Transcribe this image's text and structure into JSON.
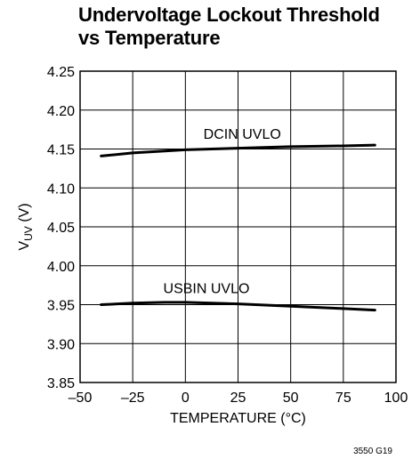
{
  "chart_data": {
    "type": "line",
    "title_lines": [
      "Undervoltage Lockout Threshold",
      "vs Temperature"
    ],
    "xlabel": "TEMPERATURE (°C)",
    "ylabel": {
      "main": "V",
      "sub": "UV",
      "unit": " (V)"
    },
    "xlim": [
      -50,
      100
    ],
    "ylim": [
      3.85,
      4.25
    ],
    "x_ticks": [
      -50,
      -25,
      0,
      25,
      50,
      75,
      100
    ],
    "x_tick_labels": [
      "–50",
      "–25",
      "0",
      "25",
      "50",
      "75",
      "100"
    ],
    "y_ticks": [
      3.85,
      3.9,
      3.95,
      4.0,
      4.05,
      4.1,
      4.15,
      4.2,
      4.25
    ],
    "y_tick_labels": [
      "3.85",
      "3.90",
      "3.95",
      "4.00",
      "4.05",
      "4.10",
      "4.15",
      "4.20",
      "4.25"
    ],
    "grid": true,
    "series": [
      {
        "name": "DCIN UVLO",
        "x": [
          -40,
          -25,
          0,
          25,
          50,
          75,
          90
        ],
        "y": [
          4.141,
          4.145,
          4.149,
          4.151,
          4.153,
          4.154,
          4.155
        ],
        "label_at": [
          27,
          4.163
        ]
      },
      {
        "name": "USBIN UVLO",
        "x": [
          -40,
          -25,
          -10,
          0,
          25,
          50,
          75,
          90
        ],
        "y": [
          3.95,
          3.952,
          3.953,
          3.953,
          3.951,
          3.948,
          3.945,
          3.943
        ],
        "label_at": [
          10,
          3.965
        ]
      }
    ]
  },
  "figure_id": "3550 G19",
  "colors": {
    "line": "#000000",
    "grid": "#000000"
  }
}
